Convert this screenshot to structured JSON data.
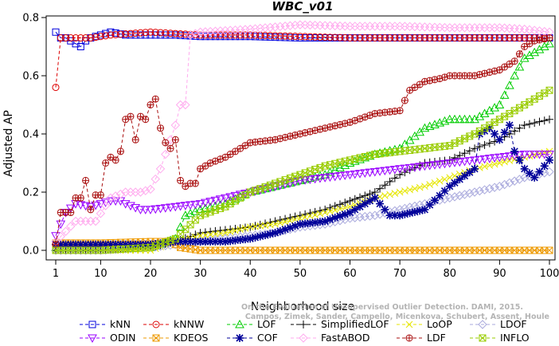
{
  "chart_data": {
    "type": "line",
    "title": "WBC_v01",
    "xlabel": "Neighborhood size",
    "ylabel": "Adjusted AP",
    "xlim": [
      1,
      100
    ],
    "ylim": [
      -0.02,
      0.8
    ],
    "xticks": [
      1,
      10,
      20,
      30,
      40,
      50,
      60,
      70,
      80,
      90,
      100
    ],
    "yticks": [
      0.0,
      0.2,
      0.4,
      0.6,
      0.8
    ],
    "xtick_labels": [
      "1",
      "10",
      "20",
      "30",
      "40",
      "50",
      "60",
      "70",
      "80",
      "90",
      "100"
    ],
    "ytick_labels": [
      "0.0",
      "0.2",
      "0.4",
      "0.6",
      "0.8"
    ],
    "grid": false,
    "legend_position": "bottom",
    "credit": "Campos, Zimek, Sander, Campello, Micenkova, Schubert, Assent, Houle\nOn the Evaluation of Unsupervised Outlier Detection. DAMI, 2015.",
    "series": [
      {
        "name": "kNN",
        "color": "#0000dd",
        "marker": "square",
        "x": [
          1,
          2,
          3,
          4,
          5,
          6,
          7,
          8,
          10,
          12,
          15,
          20,
          25,
          30,
          40,
          50,
          60,
          70,
          80,
          90,
          100
        ],
        "y": [
          0.75,
          0.73,
          0.73,
          0.72,
          0.71,
          0.7,
          0.72,
          0.73,
          0.74,
          0.75,
          0.74,
          0.74,
          0.74,
          0.735,
          0.735,
          0.73,
          0.73,
          0.73,
          0.73,
          0.73,
          0.73
        ]
      },
      {
        "name": "kNNW",
        "color": "#dd0000",
        "marker": "circle",
        "x": [
          1,
          2,
          3,
          5,
          8,
          12,
          16,
          20,
          25,
          30,
          40,
          50,
          60,
          70,
          80,
          90,
          100
        ],
        "y": [
          0.56,
          0.73,
          0.73,
          0.73,
          0.73,
          0.74,
          0.745,
          0.75,
          0.745,
          0.74,
          0.74,
          0.735,
          0.73,
          0.73,
          0.73,
          0.73,
          0.73
        ]
      },
      {
        "name": "LOF",
        "color": "#00cc00",
        "marker": "triangle",
        "x": [
          1,
          10,
          20,
          25,
          27,
          30,
          35,
          40,
          45,
          50,
          55,
          60,
          65,
          70,
          75,
          80,
          85,
          90,
          93,
          95,
          100
        ],
        "y": [
          0.01,
          0.01,
          0.01,
          0.04,
          0.12,
          0.14,
          0.16,
          0.2,
          0.22,
          0.24,
          0.26,
          0.3,
          0.33,
          0.35,
          0.42,
          0.45,
          0.45,
          0.5,
          0.6,
          0.66,
          0.71
        ]
      },
      {
        "name": "SimplifiedLOF",
        "color": "#000000",
        "marker": "plus",
        "x": [
          1,
          10,
          20,
          25,
          30,
          35,
          40,
          45,
          50,
          55,
          60,
          65,
          70,
          75,
          80,
          85,
          90,
          95,
          100
        ],
        "y": [
          0.0,
          0.0,
          0.01,
          0.03,
          0.06,
          0.07,
          0.08,
          0.1,
          0.12,
          0.14,
          0.17,
          0.2,
          0.26,
          0.3,
          0.31,
          0.35,
          0.38,
          0.43,
          0.45
        ]
      },
      {
        "name": "LoOP",
        "color": "#e6e600",
        "marker": "cross",
        "x": [
          1,
          10,
          20,
          25,
          30,
          35,
          40,
          45,
          50,
          55,
          60,
          65,
          70,
          75,
          80,
          85,
          90,
          95,
          100
        ],
        "y": [
          0.0,
          0.0,
          0.0,
          0.03,
          0.05,
          0.06,
          0.08,
          0.09,
          0.11,
          0.13,
          0.15,
          0.18,
          0.2,
          0.22,
          0.25,
          0.28,
          0.3,
          0.32,
          0.34
        ]
      },
      {
        "name": "LDOF",
        "color": "#aaaadd",
        "marker": "diamond",
        "x": [
          1,
          10,
          20,
          25,
          30,
          35,
          40,
          45,
          50,
          55,
          60,
          65,
          70,
          75,
          80,
          85,
          90,
          95,
          100
        ],
        "y": [
          0.0,
          0.0,
          0.01,
          0.02,
          0.03,
          0.04,
          0.05,
          0.06,
          0.08,
          0.09,
          0.11,
          0.12,
          0.14,
          0.16,
          0.18,
          0.2,
          0.22,
          0.25,
          0.27
        ]
      },
      {
        "name": "ODIN",
        "color": "#9900ff",
        "marker": "triangle-down",
        "x": [
          1,
          3,
          5,
          8,
          10,
          12,
          14,
          15,
          18,
          20,
          25,
          30,
          35,
          40,
          45,
          50,
          55,
          60,
          65,
          70,
          75,
          80,
          85,
          90,
          95,
          100
        ],
        "y": [
          0.05,
          0.13,
          0.16,
          0.15,
          0.16,
          0.17,
          0.17,
          0.16,
          0.14,
          0.14,
          0.15,
          0.16,
          0.18,
          0.2,
          0.22,
          0.24,
          0.25,
          0.26,
          0.27,
          0.28,
          0.29,
          0.3,
          0.31,
          0.32,
          0.33,
          0.33
        ]
      },
      {
        "name": "KDEOS",
        "color": "#ee9900",
        "marker": "square-x",
        "x": [
          1,
          10,
          20,
          24,
          25,
          26,
          28,
          30,
          40,
          50,
          60,
          70,
          80,
          90,
          100
        ],
        "y": [
          0.025,
          0.025,
          0.03,
          0.03,
          0.02,
          0.01,
          0.005,
          0.0,
          0.0,
          0.0,
          0.0,
          0.0,
          0.0,
          0.0,
          0.0
        ]
      },
      {
        "name": "COF",
        "color": "#000099",
        "marker": "star",
        "x": [
          1,
          10,
          20,
          25,
          30,
          35,
          40,
          45,
          50,
          55,
          60,
          65,
          68,
          70,
          75,
          80,
          85,
          86,
          88,
          90,
          92,
          93,
          95,
          97,
          98,
          100
        ],
        "y": [
          0.02,
          0.02,
          0.02,
          0.03,
          0.03,
          0.03,
          0.04,
          0.06,
          0.09,
          0.1,
          0.13,
          0.18,
          0.12,
          0.12,
          0.14,
          0.22,
          0.28,
          0.4,
          0.42,
          0.38,
          0.43,
          0.34,
          0.28,
          0.25,
          0.27,
          0.31
        ]
      },
      {
        "name": "FastABOD",
        "color": "#ffaaee",
        "marker": "diamond",
        "x": [
          1,
          5,
          7,
          9,
          12,
          15,
          18,
          20,
          22,
          24,
          25,
          26,
          27,
          28,
          30,
          40,
          50,
          60,
          70,
          80,
          90,
          95,
          100
        ],
        "y": [
          0.03,
          0.1,
          0.1,
          0.1,
          0.18,
          0.2,
          0.2,
          0.21,
          0.28,
          0.38,
          0.43,
          0.5,
          0.5,
          0.74,
          0.75,
          0.76,
          0.775,
          0.77,
          0.77,
          0.765,
          0.765,
          0.76,
          0.75
        ]
      },
      {
        "name": "LDF",
        "color": "#aa1111",
        "marker": "circle-plus",
        "x": [
          1,
          2,
          4,
          5,
          6,
          7,
          8,
          9,
          10,
          11,
          12,
          13,
          14,
          15,
          16,
          17,
          18,
          19,
          20,
          21,
          22,
          23,
          24,
          25,
          26,
          27,
          28,
          29,
          30,
          32,
          35,
          38,
          40,
          45,
          50,
          55,
          60,
          65,
          70,
          72,
          75,
          78,
          80,
          85,
          90,
          93,
          95,
          97,
          100
        ],
        "y": [
          0.02,
          0.13,
          0.13,
          0.18,
          0.18,
          0.24,
          0.14,
          0.19,
          0.19,
          0.3,
          0.32,
          0.31,
          0.34,
          0.45,
          0.46,
          0.38,
          0.46,
          0.45,
          0.5,
          0.52,
          0.42,
          0.37,
          0.35,
          0.38,
          0.24,
          0.22,
          0.23,
          0.23,
          0.28,
          0.3,
          0.32,
          0.35,
          0.37,
          0.38,
          0.4,
          0.42,
          0.44,
          0.47,
          0.48,
          0.55,
          0.58,
          0.59,
          0.6,
          0.6,
          0.62,
          0.65,
          0.7,
          0.72,
          0.73
        ]
      },
      {
        "name": "INFLO",
        "color": "#99cc00",
        "marker": "square-x",
        "x": [
          1,
          10,
          20,
          25,
          30,
          35,
          40,
          45,
          50,
          55,
          60,
          65,
          70,
          75,
          80,
          85,
          90,
          95,
          100
        ],
        "y": [
          0.0,
          0.0,
          0.01,
          0.04,
          0.12,
          0.15,
          0.2,
          0.23,
          0.26,
          0.29,
          0.31,
          0.33,
          0.34,
          0.35,
          0.36,
          0.4,
          0.45,
          0.5,
          0.55
        ]
      }
    ]
  }
}
